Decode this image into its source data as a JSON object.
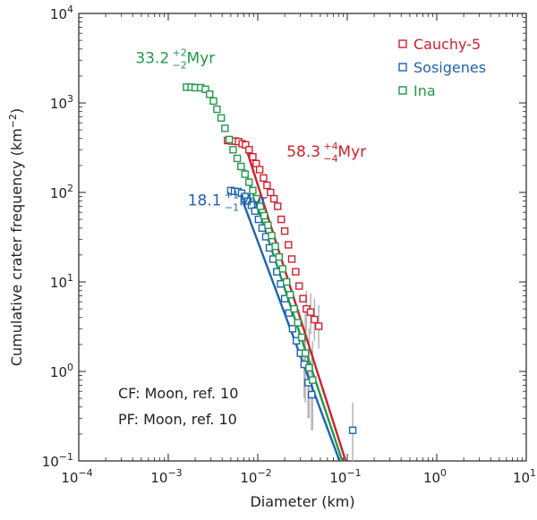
{
  "chart_data": {
    "type": "scatter",
    "xscale": "log",
    "yscale": "log",
    "xlim": [
      0.0001,
      10
    ],
    "ylim": [
      0.1,
      10000
    ],
    "xlabel": "Diameter (km)",
    "ylabel": "Cumulative crater frequency (km−2)",
    "ylabel_base": "Cumulative crater frequency (km",
    "ylabel_exp": "−2",
    "ylabel_close": ")",
    "grid": false,
    "legend_position": "top-right",
    "x_ticks": [
      {
        "value": 0.0001,
        "base": "10",
        "exp": "−4"
      },
      {
        "value": 0.001,
        "base": "10",
        "exp": "−3"
      },
      {
        "value": 0.01,
        "base": "10",
        "exp": "−2"
      },
      {
        "value": 0.1,
        "base": "10",
        "exp": "−1"
      },
      {
        "value": 1,
        "base": "10",
        "exp": "0"
      },
      {
        "value": 10,
        "base": "10",
        "exp": "1"
      }
    ],
    "y_ticks": [
      {
        "value": 0.1,
        "base": "10",
        "exp": "−1"
      },
      {
        "value": 1,
        "base": "10",
        "exp": "0"
      },
      {
        "value": 10,
        "base": "10",
        "exp": "1"
      },
      {
        "value": 100,
        "base": "10",
        "exp": "2"
      },
      {
        "value": 1000,
        "base": "10",
        "exp": "3"
      },
      {
        "value": 10000,
        "base": "10",
        "exp": "4"
      }
    ],
    "series": [
      {
        "name": "Cauchy-5",
        "color": "#d0202e",
        "age_label": {
          "value": "58.3",
          "sup": "+4",
          "sub": "−4",
          "unit": " Myr",
          "x": 0.021,
          "y": 250
        },
        "fit_line": {
          "x": [
            0.0075,
            0.096
          ],
          "y": [
            300,
            0.1
          ]
        },
        "points": [
          [
            0.0046,
            380
          ],
          [
            0.0051,
            375
          ],
          [
            0.0056,
            375
          ],
          [
            0.0061,
            370
          ],
          [
            0.0067,
            350
          ],
          [
            0.0073,
            340
          ],
          [
            0.008,
            300
          ],
          [
            0.0088,
            250
          ],
          [
            0.0096,
            210
          ],
          [
            0.0105,
            180
          ],
          [
            0.0116,
            145
          ],
          [
            0.0127,
            120
          ],
          [
            0.0139,
            100
          ],
          [
            0.0152,
            85
          ],
          [
            0.0167,
            70
          ],
          [
            0.0183,
            50
          ],
          [
            0.02,
            37
          ],
          [
            0.022,
            26
          ],
          [
            0.024,
            18
          ],
          [
            0.0265,
            13
          ],
          [
            0.029,
            9
          ],
          [
            0.032,
            6.5
          ],
          [
            0.035,
            5
          ],
          [
            0.039,
            4.6
          ],
          [
            0.043,
            3.8
          ],
          [
            0.048,
            3.2
          ]
        ],
        "error_bars": [
          {
            "x": 0.035,
            "low": 2.8,
            "high": 8
          },
          {
            "x": 0.039,
            "low": 2.6,
            "high": 7.5
          },
          {
            "x": 0.043,
            "low": 2.2,
            "high": 6.5
          },
          {
            "x": 0.048,
            "low": 1.8,
            "high": 5.5
          }
        ]
      },
      {
        "name": "Sosigenes",
        "color": "#1f63b1",
        "age_label": {
          "value": "18.1",
          "sup": "+1",
          "sub": "−1",
          "unit": " Myr",
          "x": 0.00165,
          "y": 72
        },
        "fit_line": {
          "x": [
            0.0068,
            0.082
          ],
          "y": [
            80,
            0.1
          ]
        },
        "points": [
          [
            0.005,
            105
          ],
          [
            0.0055,
            103
          ],
          [
            0.006,
            102
          ],
          [
            0.0066,
            98
          ],
          [
            0.0072,
            90
          ],
          [
            0.0078,
            80
          ],
          [
            0.0085,
            72
          ],
          [
            0.0093,
            62
          ],
          [
            0.0102,
            50
          ],
          [
            0.0112,
            40
          ],
          [
            0.0123,
            32
          ],
          [
            0.0135,
            24
          ],
          [
            0.0148,
            18
          ],
          [
            0.0163,
            13
          ],
          [
            0.018,
            9.5
          ],
          [
            0.02,
            6.5
          ],
          [
            0.0222,
            4.5
          ],
          [
            0.0245,
            3.0
          ],
          [
            0.027,
            2.2
          ],
          [
            0.03,
            1.6
          ],
          [
            0.033,
            1.2
          ],
          [
            0.0365,
            0.75
          ],
          [
            0.04,
            0.55
          ],
          [
            0.115,
            0.22
          ]
        ],
        "error_bars": [
          {
            "x": 0.033,
            "low": 0.5,
            "high": 2.6
          },
          {
            "x": 0.0365,
            "low": 0.3,
            "high": 1.8
          },
          {
            "x": 0.04,
            "low": 0.22,
            "high": 1.4
          },
          {
            "x": 0.115,
            "low": 0.1,
            "high": 0.45
          }
        ]
      },
      {
        "name": "Ina",
        "color": "#1f9a48",
        "age_label": {
          "value": "33.2",
          "sup": "+2",
          "sub": "−2",
          "unit": " Myr",
          "x": 0.00043,
          "y": 2800
        },
        "fit_line": {
          "x": [
            0.0072,
            0.088
          ],
          "y": [
            180,
            0.1
          ]
        },
        "points": [
          [
            0.0016,
            1500
          ],
          [
            0.0018,
            1500
          ],
          [
            0.002,
            1480
          ],
          [
            0.0023,
            1480
          ],
          [
            0.0026,
            1420
          ],
          [
            0.0029,
            1250
          ],
          [
            0.0032,
            1050
          ],
          [
            0.0035,
            850
          ],
          [
            0.0039,
            680
          ],
          [
            0.0043,
            520
          ],
          [
            0.0048,
            390
          ],
          [
            0.0053,
            300
          ],
          [
            0.0059,
            240
          ],
          [
            0.0065,
            195
          ],
          [
            0.0072,
            160
          ],
          [
            0.008,
            130
          ],
          [
            0.0088,
            105
          ],
          [
            0.0097,
            85
          ],
          [
            0.0107,
            70
          ],
          [
            0.0118,
            55
          ],
          [
            0.013,
            43
          ],
          [
            0.0143,
            33
          ],
          [
            0.0157,
            25
          ],
          [
            0.0173,
            19
          ],
          [
            0.019,
            14
          ],
          [
            0.021,
            10
          ],
          [
            0.023,
            7.2
          ],
          [
            0.0255,
            5.0
          ],
          [
            0.028,
            3.5
          ],
          [
            0.031,
            2.4
          ],
          [
            0.034,
            1.6
          ],
          [
            0.0375,
            1.1
          ],
          [
            0.041,
            0.8
          ]
        ],
        "error_bars": [
          {
            "x": 0.034,
            "low": 0.45,
            "high": 4.5
          },
          {
            "x": 0.0375,
            "low": 0.3,
            "high": 3.0
          },
          {
            "x": 0.041,
            "low": 0.22,
            "high": 2.2
          }
        ]
      }
    ],
    "annotations": [
      "CF: Moon, ref. 10",
      "PF: Moon, ref. 10"
    ]
  },
  "colors": {
    "axis": "#222222",
    "text": "#222222",
    "error_bar": "#b8b8b8",
    "background": "#ffffff"
  }
}
